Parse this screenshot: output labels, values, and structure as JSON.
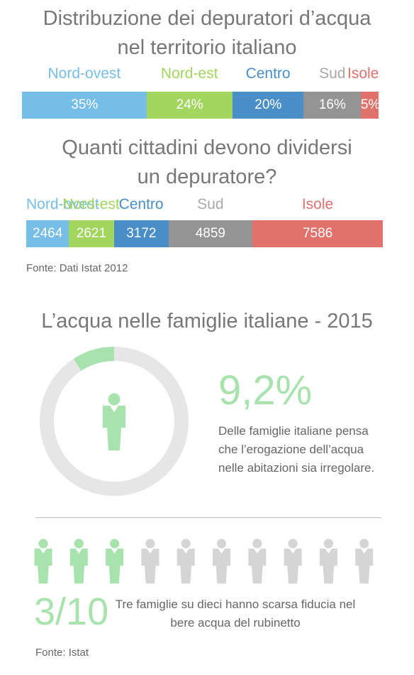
{
  "chart_data": [
    {
      "type": "bar",
      "title": "Distribuzione dei depuratori d’acqua nel territorio italiano",
      "title_lines": [
        "Distribuzione dei depuratori d’acqua",
        "nel territorio italiano"
      ],
      "categories": [
        "Nord-ovest",
        "Nord-est",
        "Centro",
        "Sud",
        "Isole"
      ],
      "values": [
        35,
        24,
        20,
        16,
        5
      ],
      "value_labels": [
        "35%",
        "24%",
        "20%",
        "16%",
        "5%"
      ],
      "colors": [
        "#76bde8",
        "#a3d65e",
        "#4a8ec7",
        "#949494",
        "#e0716b"
      ],
      "orientation": "stacked-horizontal"
    },
    {
      "type": "bar",
      "title": "Quanti cittadini devono dividersi un depuratore?",
      "title_lines": [
        "Quanti cittadini devono dividersi",
        "un depuratore?"
      ],
      "categories": [
        "Nord-ovest",
        "Nord-est",
        "Centro",
        "Sud",
        "Isole"
      ],
      "values": [
        2464,
        2621,
        3172,
        4859,
        7586
      ],
      "value_labels": [
        "2464",
        "2621",
        "3172",
        "4859",
        "7586"
      ],
      "colors": [
        "#76bde8",
        "#a3d65e",
        "#4a8ec7",
        "#949494",
        "#e0716b"
      ],
      "orientation": "stacked-horizontal"
    },
    {
      "type": "pie",
      "title": "L’acqua nelle famiglie italiane - 2015",
      "values": [
        9.2,
        90.8
      ],
      "value_label": "9,2%",
      "description": "Delle famiglie italiane pensa che l’erogazione dell’acqua nelle abitazioni sia irregolare.",
      "desc_lines": [
        "Delle famiglie italiane pensa",
        "che l’erogazione dell’acqua",
        "nelle abitazioni sia irregolare."
      ],
      "colors": [
        "#a8e3ad",
        "#e6e6e6"
      ]
    },
    {
      "type": "pictogram",
      "highlighted": 3,
      "total": 10,
      "fraction_label": "3/10",
      "description": "Tre famiglie su dieci hanno scarsa fiducia nel bere acqua del rubinetto",
      "desc_lines": [
        "Tre famiglie su dieci hanno scarsa fiducia nel",
        "bere acqua del rubinetto"
      ],
      "colors": [
        "#a8e3ad",
        "#d5d5d5"
      ]
    }
  ],
  "sources": {
    "top": "Fonte: Dati Istat 2012",
    "bottom": "Fonte: Istat"
  },
  "label_colors": [
    "#76bde8",
    "#a3d65e",
    "#4a8ec7",
    "#a8a8a8",
    "#e0716b"
  ]
}
